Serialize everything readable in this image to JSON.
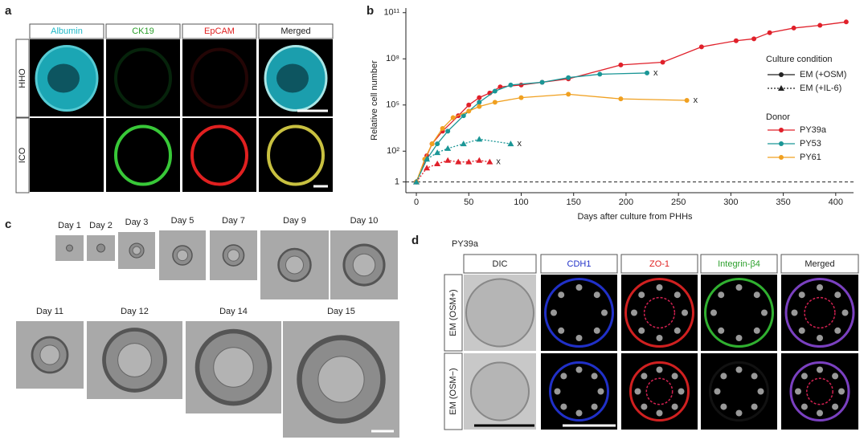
{
  "panel_labels": [
    "a",
    "b",
    "c",
    "d"
  ],
  "panel_a": {
    "columns": [
      "Albumin",
      "CK19",
      "EpCAM",
      "Merged"
    ],
    "rows": [
      "HHO",
      "ICO"
    ]
  },
  "chart_data": {
    "type": "line",
    "ylabel": "Relative cell number",
    "xlabel": "Days after culture from PHHs",
    "xlim": [
      -10,
      417
    ],
    "ylim": [
      0.2,
      200000000000
    ],
    "yscale": "log",
    "xticks": [
      0,
      50,
      100,
      150,
      200,
      250,
      300,
      350,
      400
    ],
    "yticks": [
      1,
      {
        "value": 100,
        "label": "10²"
      },
      {
        "value": 100000,
        "label": "10⁵"
      },
      {
        "value": 100000000,
        "label": "10⁸"
      },
      {
        "value": 100000000000,
        "label": "10¹¹"
      }
    ],
    "reference_line": 1,
    "legend_position": "right",
    "legend": {
      "condition_title": "Culture condition",
      "conditions": [
        {
          "name": "EM (+OSM)",
          "marker": "circle",
          "dash": "solid"
        },
        {
          "name": "EM (+IL-6)",
          "marker": "triangle",
          "dash": "dotted"
        }
      ],
      "donor_title": "Donor",
      "donors": [
        {
          "name": "PY39a",
          "color": "#e0202a"
        },
        {
          "name": "PY53",
          "color": "#1a9696"
        },
        {
          "name": "PY61",
          "color": "#f0a020"
        }
      ]
    },
    "series": [
      {
        "donor": "PY39a",
        "condition": "EM (+OSM)",
        "x": [
          0,
          10,
          15,
          25,
          40,
          50,
          60,
          70,
          80,
          100,
          120,
          145,
          195,
          235,
          272,
          305,
          322,
          337,
          360,
          385,
          410
        ],
        "values": [
          1,
          50,
          300,
          2000,
          20000,
          100000,
          300000,
          600000,
          1500000,
          2000000,
          3000000,
          5000000,
          40000000,
          60000000,
          600000000,
          1500000000,
          2000000000,
          5000000000,
          10000000000,
          15000000000,
          25000000000
        ]
      },
      {
        "donor": "PY53",
        "condition": "EM (+OSM)",
        "x": [
          0,
          10,
          20,
          30,
          45,
          60,
          75,
          90,
          120,
          145,
          175,
          220
        ],
        "values": [
          1,
          30,
          300,
          2000,
          20000,
          150000,
          800000,
          2000000,
          3000000,
          6000000,
          10000000,
          12000000
        ],
        "end_label": "x"
      },
      {
        "donor": "PY61",
        "condition": "EM (+OSM)",
        "x": [
          0,
          8,
          15,
          25,
          35,
          50,
          60,
          75,
          100,
          145,
          195,
          258
        ],
        "values": [
          1,
          30,
          300,
          3000,
          15000,
          40000,
          80000,
          150000,
          300000,
          500000,
          250000,
          200000
        ],
        "end_label": "x"
      },
      {
        "donor": "PY39a",
        "condition": "EM (+IL-6)",
        "x": [
          0,
          10,
          20,
          30,
          40,
          50,
          60,
          70
        ],
        "values": [
          1,
          8,
          15,
          25,
          20,
          20,
          25,
          20
        ],
        "end_label": "x"
      },
      {
        "donor": "PY53",
        "condition": "EM (+IL-6)",
        "x": [
          0,
          10,
          20,
          30,
          45,
          60,
          90
        ],
        "values": [
          1,
          30,
          80,
          150,
          300,
          600,
          300
        ],
        "end_label": "x"
      }
    ]
  },
  "panel_c": {
    "days": [
      "Day 1",
      "Day 2",
      "Day 3",
      "Day 5",
      "Day 7",
      "Day 9",
      "Day 10",
      "Day 11",
      "Day 12",
      "Day 14",
      "Day 15"
    ]
  },
  "panel_d": {
    "donor": "PY39a",
    "columns": [
      "DIC",
      "CDH1",
      "ZO-1",
      "Integrin-β4",
      "Merged"
    ],
    "rows": [
      "EM (OSM+)",
      "EM (OSM−)"
    ]
  }
}
